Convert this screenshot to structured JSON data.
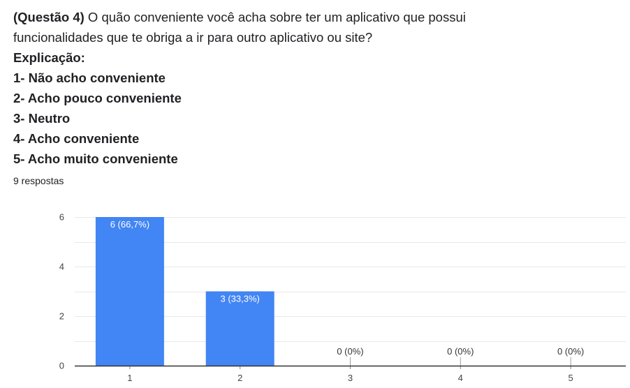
{
  "question": {
    "prefix": "(Questão 4)",
    "text_line1": " O quão conveniente você acha sobre ter um aplicativo que possui",
    "text_line2": "funcionalidades que te obriga a ir para outro aplicativo ou site?",
    "explanation_title": "Explicação:",
    "options": [
      "1- Não acho conveniente",
      "2- Acho pouco conveniente",
      "3- Neutro",
      "4- Acho conveniente",
      "5- Acho muito conveniente"
    ]
  },
  "responses_count": "9 respostas",
  "colors": {
    "bar": "#4285f4",
    "grid": "#e8e8e8",
    "axis": "#333333",
    "label_inside": "#ffffff",
    "label_outside": "#333333"
  },
  "chart_data": {
    "type": "bar",
    "categories": [
      "1",
      "2",
      "3",
      "4",
      "5"
    ],
    "values": [
      6,
      3,
      0,
      0,
      0
    ],
    "data_labels": [
      "6 (66,7%)",
      "3 (33,3%)",
      "0 (0%)",
      "0 (0%)",
      "0 (0%)"
    ],
    "yticks": [
      0,
      2,
      4,
      6
    ],
    "ylim": [
      0,
      6
    ],
    "grid": true,
    "legend": "none",
    "title": "",
    "xlabel": "",
    "ylabel": ""
  }
}
